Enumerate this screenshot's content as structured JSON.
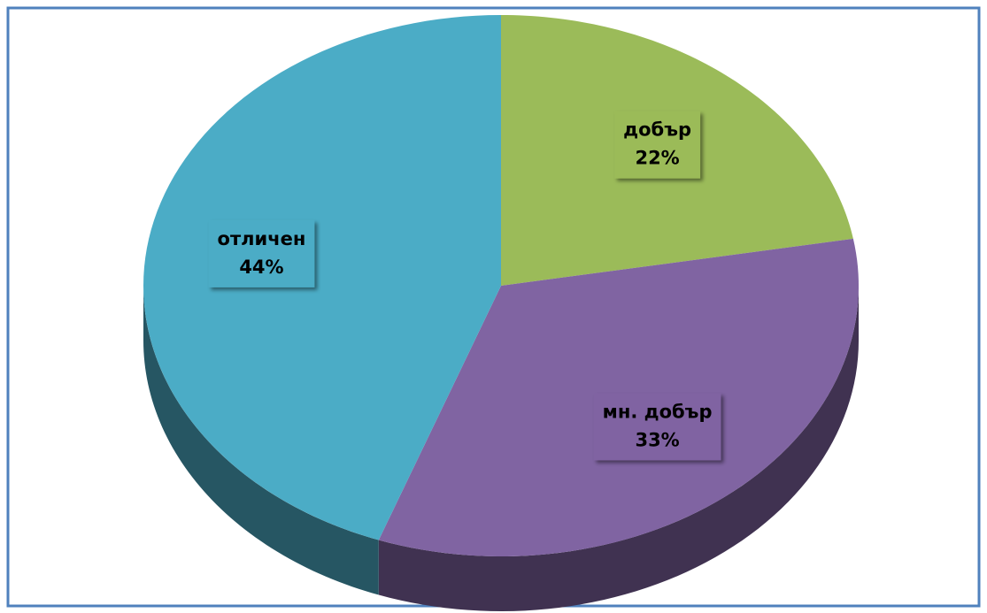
{
  "chart_data": {
    "type": "pie",
    "categories": [
      "добър",
      "мн. добър",
      "отличен"
    ],
    "values": [
      22,
      33,
      44
    ],
    "value_labels": [
      "22%",
      "33%",
      "44%"
    ],
    "colors": [
      "#9bbb59",
      "#8064a2",
      "#4bacc6"
    ]
  }
}
